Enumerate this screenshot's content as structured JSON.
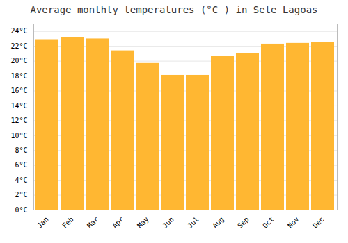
{
  "chart_data": {
    "type": "bar",
    "title": "Average monthly temperatures (°C ) in Sete Lagoas",
    "categories": [
      "Jan",
      "Feb",
      "Mar",
      "Apr",
      "May",
      "Jun",
      "Jul",
      "Aug",
      "Sep",
      "Oct",
      "Nov",
      "Dec"
    ],
    "values": [
      22.9,
      23.2,
      23.0,
      21.4,
      19.7,
      18.1,
      18.1,
      20.7,
      21.0,
      22.3,
      22.4,
      22.5
    ],
    "color": "#FFB732",
    "ylim": [
      0,
      25
    ],
    "yticks": [
      {
        "value": 0,
        "label": "0°C"
      },
      {
        "value": 2,
        "label": "2°C"
      },
      {
        "value": 4,
        "label": "4°C"
      },
      {
        "value": 6,
        "label": "6°C"
      },
      {
        "value": 8,
        "label": "8°C"
      },
      {
        "value": 10,
        "label": "10°C"
      },
      {
        "value": 12,
        "label": "12°C"
      },
      {
        "value": 14,
        "label": "14°C"
      },
      {
        "value": 16,
        "label": "16°C"
      },
      {
        "value": 18,
        "label": "18°C"
      },
      {
        "value": 20,
        "label": "20°C"
      },
      {
        "value": 22,
        "label": "22°C"
      },
      {
        "value": 24,
        "label": "24°C"
      }
    ],
    "grid": true
  }
}
